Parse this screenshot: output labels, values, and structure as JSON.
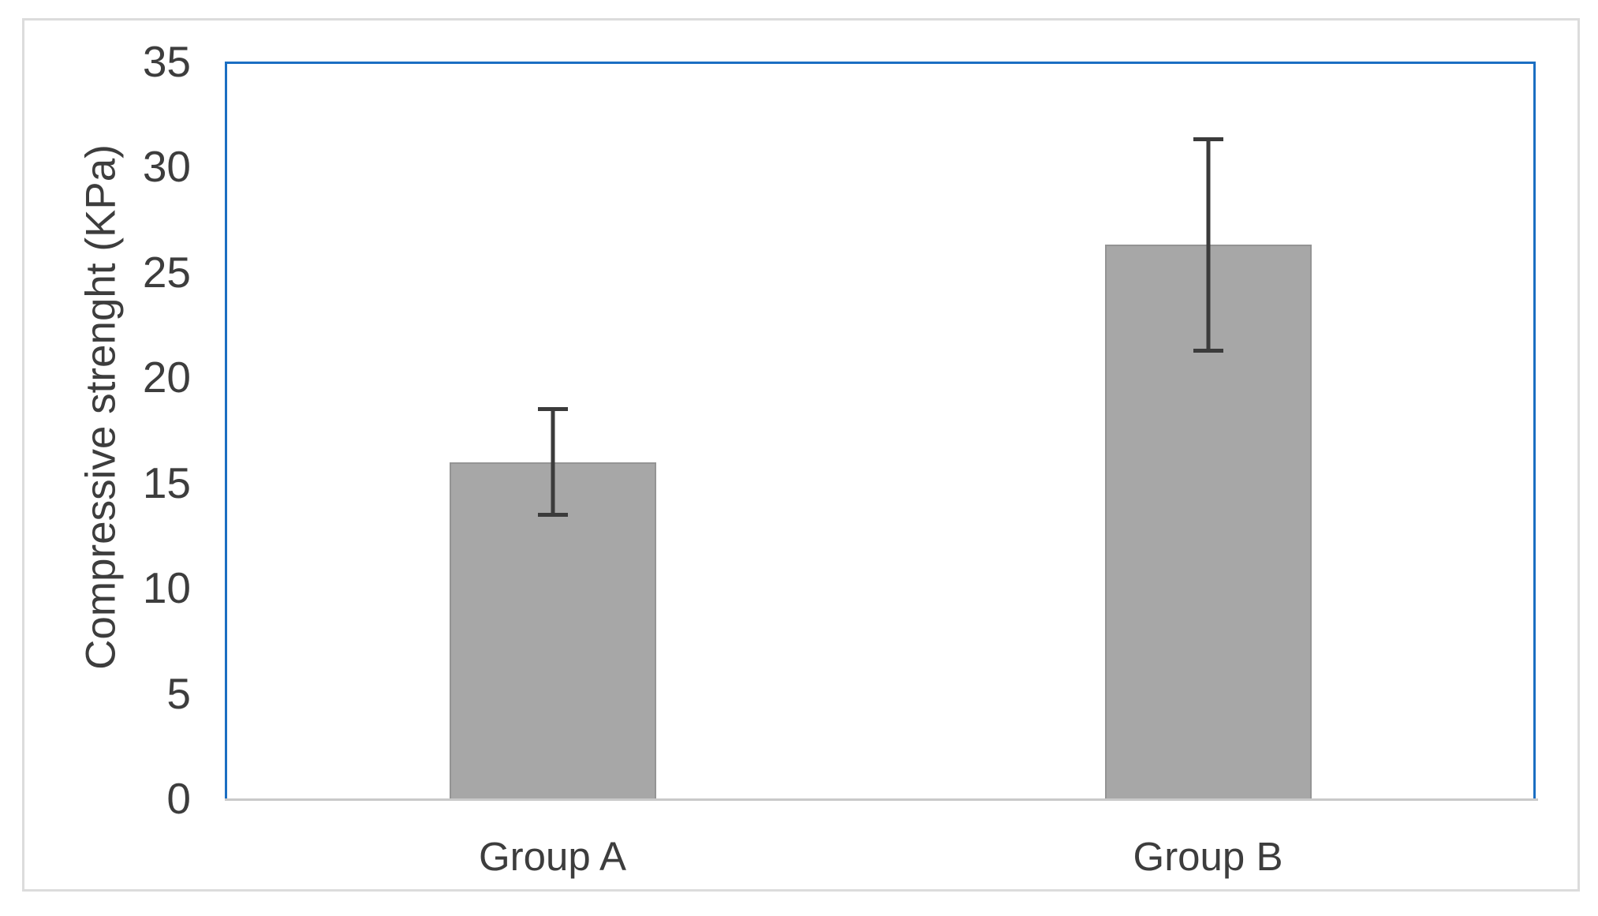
{
  "figure": {
    "background": "#ffffff",
    "frame_color": "#dcdcdc",
    "plot_border_color": "#1b6ec2",
    "axis_line_color": "#c9c9c9",
    "bar_fill_color": "#a7a7a7",
    "bar_edge_color": "#949494",
    "error_bar_color": "#3b3b3b",
    "text_color": "#3d3d3d"
  },
  "chart_data": {
    "type": "bar",
    "title": "",
    "xlabel": "",
    "ylabel": "Compressive strenght (KPa)",
    "categories": [
      "Group A",
      "Group B"
    ],
    "values": [
      16,
      26.3
    ],
    "errors": [
      2.6,
      5.1
    ],
    "ylim": [
      0,
      35
    ],
    "ytick_interval": 5,
    "yticks_display": [
      35,
      30,
      25,
      20,
      15,
      10,
      5,
      0
    ],
    "grid": false,
    "legend": null
  }
}
